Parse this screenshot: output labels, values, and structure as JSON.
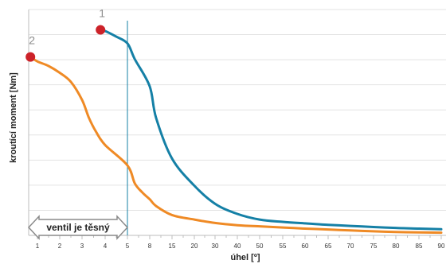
{
  "chart_data": {
    "type": "line",
    "title": "",
    "xlabel": "úhel [º]",
    "ylabel": "kroutící moment [Nm]",
    "x_tick_labels": [
      "1",
      "2",
      "3",
      "4",
      "5",
      "8",
      "15",
      "20",
      "30",
      "40",
      "50",
      "55",
      "60",
      "65",
      "70",
      "75",
      "80",
      "85",
      "90"
    ],
    "ylim": [
      0,
      100
    ],
    "grid": "horizontal",
    "series": [
      {
        "name": "1",
        "color": "#1580a6",
        "points": [
          [
            3.8,
            91
          ],
          [
            4,
            90.5
          ],
          [
            4.5,
            88
          ],
          [
            5,
            85
          ],
          [
            6,
            78
          ],
          [
            8,
            66
          ],
          [
            10,
            52
          ],
          [
            15,
            34
          ],
          [
            20,
            22
          ],
          [
            30,
            14
          ],
          [
            40,
            9.5
          ],
          [
            50,
            7
          ],
          [
            55,
            6
          ],
          [
            60,
            5.3
          ],
          [
            65,
            4.7
          ],
          [
            70,
            4.2
          ],
          [
            75,
            3.7
          ],
          [
            80,
            3.3
          ],
          [
            85,
            3
          ],
          [
            90,
            2.7
          ]
        ]
      },
      {
        "name": "2",
        "color": "#ef8a25",
        "points": [
          [
            0.2,
            79
          ],
          [
            1,
            77
          ],
          [
            1.5,
            75
          ],
          [
            2,
            72
          ],
          [
            2.5,
            68
          ],
          [
            3,
            60
          ],
          [
            3.3,
            52
          ],
          [
            3.6,
            46
          ],
          [
            4,
            40
          ],
          [
            5,
            31
          ],
          [
            6,
            23
          ],
          [
            7,
            19
          ],
          [
            8,
            16
          ],
          [
            10,
            13
          ],
          [
            15,
            9
          ],
          [
            20,
            7
          ],
          [
            30,
            5.5
          ],
          [
            40,
            4.5
          ],
          [
            50,
            4
          ],
          [
            55,
            3.5
          ],
          [
            60,
            3
          ],
          [
            65,
            2.6
          ],
          [
            70,
            2.2
          ],
          [
            75,
            1.8
          ],
          [
            80,
            1.5
          ],
          [
            85,
            1.3
          ],
          [
            90,
            1.2
          ]
        ]
      }
    ],
    "markers": [
      {
        "series": "1",
        "label": "1",
        "x": 3.8,
        "y": 91,
        "color": "#cc2229"
      },
      {
        "series": "2",
        "label": "2",
        "x": 0.2,
        "y": 79,
        "color": "#cc2229"
      }
    ],
    "reference_line": {
      "x": 5,
      "color": "#1580a6"
    },
    "range_annotation": {
      "text": "ventil je těsný",
      "from": 0,
      "to": 5
    }
  }
}
